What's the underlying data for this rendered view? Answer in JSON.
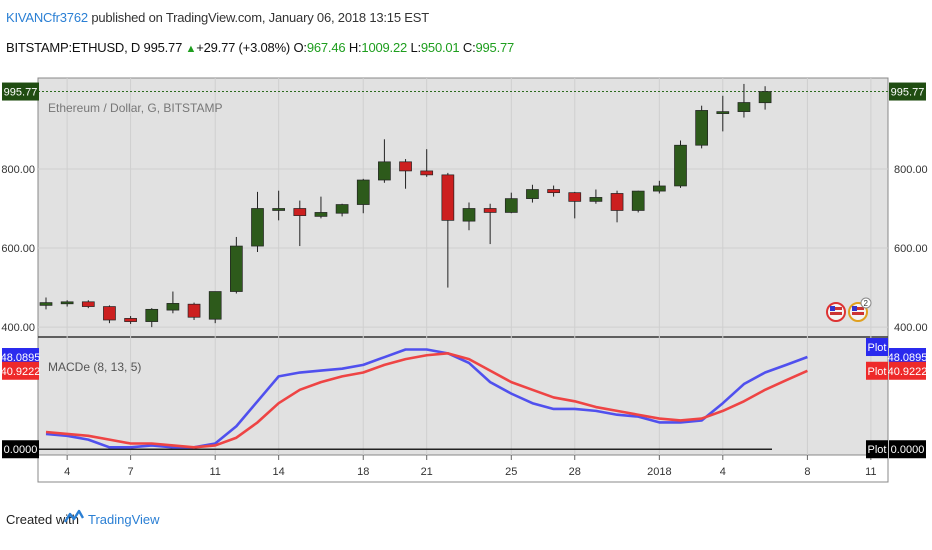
{
  "header": {
    "author": "KIVANCfr3762",
    "published": "published on TradingView.com, January 06, 2018 13:15 EST",
    "symbol": "BITSTAMP:ETHUSD, D",
    "last": "995.77",
    "change": "+29.77 (+3.08%)",
    "o_label": "O:",
    "o_value": "967.46",
    "h_label": "H:",
    "h_value": "1009.22",
    "l_label": "L:",
    "l_value": "950.01",
    "c_label": "C:",
    "c_value": "995.77"
  },
  "footer": {
    "created_with": "Created with",
    "brand": "TradingView"
  },
  "colors": {
    "up": "#2d5a1b",
    "down": "#cc1f1f",
    "macd": "#5050ee",
    "signal": "#ee4444",
    "panel_bg": "#e1e1e1",
    "badge_green": "#204d12"
  },
  "icons": [
    "us-flag-badge-icon",
    "us-flag-earnings-badge-icon",
    "tradingview-logo-icon"
  ],
  "chart_data": [
    {
      "type": "candlestick",
      "title": "Ethereum / Dollar, G, BITSTAMP",
      "y_ticks": [
        400,
        600,
        800
      ],
      "y_tick_labels": [
        "400.00",
        "600.00",
        "800.00"
      ],
      "ylim": [
        375,
        1030
      ],
      "last_price": 995.77,
      "last_price_label": "995.77",
      "x_ticks": [
        {
          "label": "4",
          "index": 1
        },
        {
          "label": "7",
          "index": 4
        },
        {
          "label": "11",
          "index": 8
        },
        {
          "label": "14",
          "index": 11
        },
        {
          "label": "18",
          "index": 15
        },
        {
          "label": "21",
          "index": 18
        },
        {
          "label": "25",
          "index": 22
        },
        {
          "label": "28",
          "index": 25
        },
        {
          "label": "2018",
          "index": 29
        },
        {
          "label": "4",
          "index": 32
        },
        {
          "label": "8",
          "index": 36
        },
        {
          "label": "11",
          "index": 39
        }
      ],
      "candles": [
        {
          "o": 455,
          "h": 475,
          "l": 445,
          "c": 462
        },
        {
          "o": 460,
          "h": 468,
          "l": 452,
          "c": 464
        },
        {
          "o": 464,
          "h": 468,
          "l": 448,
          "c": 452
        },
        {
          "o": 452,
          "h": 455,
          "l": 410,
          "c": 418
        },
        {
          "o": 422,
          "h": 428,
          "l": 408,
          "c": 414
        },
        {
          "o": 414,
          "h": 448,
          "l": 400,
          "c": 445
        },
        {
          "o": 443,
          "h": 490,
          "l": 435,
          "c": 460
        },
        {
          "o": 458,
          "h": 462,
          "l": 418,
          "c": 425
        },
        {
          "o": 420,
          "h": 488,
          "l": 410,
          "c": 490
        },
        {
          "o": 490,
          "h": 628,
          "l": 485,
          "c": 605
        },
        {
          "o": 605,
          "h": 742,
          "l": 590,
          "c": 700
        },
        {
          "o": 700,
          "h": 745,
          "l": 670,
          "c": 700
        },
        {
          "o": 700,
          "h": 720,
          "l": 605,
          "c": 682
        },
        {
          "o": 680,
          "h": 730,
          "l": 675,
          "c": 690
        },
        {
          "o": 688,
          "h": 712,
          "l": 680,
          "c": 710
        },
        {
          "o": 710,
          "h": 775,
          "l": 688,
          "c": 772
        },
        {
          "o": 772,
          "h": 875,
          "l": 765,
          "c": 818
        },
        {
          "o": 818,
          "h": 825,
          "l": 750,
          "c": 795
        },
        {
          "o": 795,
          "h": 850,
          "l": 780,
          "c": 785
        },
        {
          "o": 785,
          "h": 790,
          "l": 500,
          "c": 670
        },
        {
          "o": 668,
          "h": 715,
          "l": 645,
          "c": 700
        },
        {
          "o": 700,
          "h": 712,
          "l": 610,
          "c": 690
        },
        {
          "o": 690,
          "h": 740,
          "l": 688,
          "c": 725
        },
        {
          "o": 725,
          "h": 760,
          "l": 715,
          "c": 748
        },
        {
          "o": 748,
          "h": 758,
          "l": 730,
          "c": 740
        },
        {
          "o": 740,
          "h": 742,
          "l": 675,
          "c": 718
        },
        {
          "o": 718,
          "h": 748,
          "l": 712,
          "c": 728
        },
        {
          "o": 738,
          "h": 745,
          "l": 665,
          "c": 695
        },
        {
          "o": 695,
          "h": 745,
          "l": 690,
          "c": 744
        },
        {
          "o": 744,
          "h": 770,
          "l": 738,
          "c": 757
        },
        {
          "o": 757,
          "h": 872,
          "l": 752,
          "c": 860
        },
        {
          "o": 860,
          "h": 960,
          "l": 852,
          "c": 948
        },
        {
          "o": 942,
          "h": 985,
          "l": 895,
          "c": 945
        },
        {
          "o": 945,
          "h": 1015,
          "l": 930,
          "c": 968
        },
        {
          "o": 967.46,
          "h": 1009.22,
          "l": 950.01,
          "c": 995.77
        }
      ]
    },
    {
      "type": "line",
      "title": "MACDe (8, 13, 5)",
      "ylim": [
        -3,
        58
      ],
      "baseline_label": "0.0000",
      "macd_label": "48.0895",
      "signal_label": "40.9222",
      "plot_label": "Plot",
      "series": [
        {
          "values": [
            8,
            7,
            5,
            1,
            1,
            2,
            1,
            1,
            3,
            12,
            25,
            38,
            40,
            41,
            42,
            44,
            48,
            52,
            52,
            50,
            45,
            35,
            29,
            24,
            21,
            21,
            20,
            18,
            17,
            14,
            14,
            15,
            24,
            34,
            40,
            44,
            48.09
          ]
        },
        {
          "values": [
            9,
            8,
            7,
            5,
            3,
            3,
            2,
            1,
            2,
            6,
            14,
            24,
            31,
            35,
            38,
            40,
            44,
            47,
            49,
            50,
            47,
            41,
            35,
            31,
            27,
            25,
            22,
            20,
            18,
            16,
            15,
            16,
            20,
            25,
            31,
            36,
            40.92
          ]
        }
      ]
    }
  ]
}
